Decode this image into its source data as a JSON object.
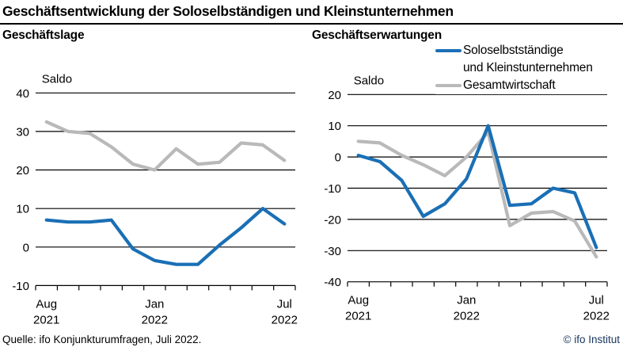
{
  "title": "Geschäftsentwicklung der Soloselbständigen und Kleinstunternehmen",
  "legend": {
    "series1_line1": "Soloselbstständige",
    "series1_line2": "und Kleinstunternehmen",
    "series2": "Gesamtwirtschaft"
  },
  "footer": {
    "source": "Quelle: ifo Konjunkturumfragen, Juli 2022.",
    "copyright": "© ifo Institut"
  },
  "colors": {
    "series_blue": "#1a6fb5",
    "series_gray": "#b9b9b9",
    "copyright_text": "#17365d",
    "axis": "#000000"
  },
  "chart_data": [
    {
      "type": "line",
      "title": "Geschäftslage",
      "axis_label": "Saldo",
      "categories": [
        "Aug 2021",
        "Sep 2021",
        "Okt 2021",
        "Nov 2021",
        "Dez 2021",
        "Jan 2022",
        "Feb 2022",
        "Mär 2022",
        "Apr 2022",
        "Mai 2022",
        "Jun 2022",
        "Jul 2022"
      ],
      "x_tick_labels": [
        {
          "index": 0,
          "month": "Aug",
          "year": "2021"
        },
        {
          "index": 5,
          "month": "Jan",
          "year": "2022"
        },
        {
          "index": 11,
          "month": "Jul",
          "year": "2022"
        }
      ],
      "ylim": [
        -10,
        40
      ],
      "yticks": [
        40,
        30,
        20,
        10,
        0,
        -10
      ],
      "grid": "horizontal",
      "legend_position": "top-right",
      "series": [
        {
          "name": "Soloselbstständige und Kleinstunternehmen",
          "color": "#1a6fb5",
          "values": [
            7,
            6.5,
            6.5,
            7,
            -0.5,
            -3.5,
            -4.5,
            -4.5,
            0.5,
            5,
            10,
            6
          ]
        },
        {
          "name": "Gesamtwirtschaft",
          "color": "#b9b9b9",
          "values": [
            32.5,
            30,
            29.5,
            26,
            21.5,
            20,
            25.5,
            21.5,
            22,
            27,
            26.5,
            22.5
          ]
        }
      ]
    },
    {
      "type": "line",
      "title": "Geschäftserwartungen",
      "axis_label": "Saldo",
      "categories": [
        "Aug 2021",
        "Sep 2021",
        "Okt 2021",
        "Nov 2021",
        "Dez 2021",
        "Jan 2022",
        "Feb 2022",
        "Mär 2022",
        "Apr 2022",
        "Mai 2022",
        "Jun 2022",
        "Jul 2022"
      ],
      "x_tick_labels": [
        {
          "index": 0,
          "month": "Aug",
          "year": "2021"
        },
        {
          "index": 5,
          "month": "Jan",
          "year": "2022"
        },
        {
          "index": 11,
          "month": "Jul",
          "year": "2022"
        }
      ],
      "ylim": [
        -40,
        20
      ],
      "yticks": [
        20,
        10,
        0,
        -10,
        -20,
        -30,
        -40
      ],
      "grid": "horizontal",
      "legend_position": "top-right",
      "series": [
        {
          "name": "Soloselbstständige und Kleinstunternehmen",
          "color": "#1a6fb5",
          "values": [
            0.5,
            -1.5,
            -7.5,
            -19,
            -15,
            -7,
            10,
            -15.5,
            -15,
            -10,
            -11.5,
            -29
          ]
        },
        {
          "name": "Gesamtwirtschaft",
          "color": "#b9b9b9",
          "values": [
            5,
            4.5,
            0.5,
            -2.5,
            -6,
            0,
            8,
            -22,
            -18,
            -17.5,
            -20.5,
            -32
          ]
        }
      ]
    }
  ]
}
